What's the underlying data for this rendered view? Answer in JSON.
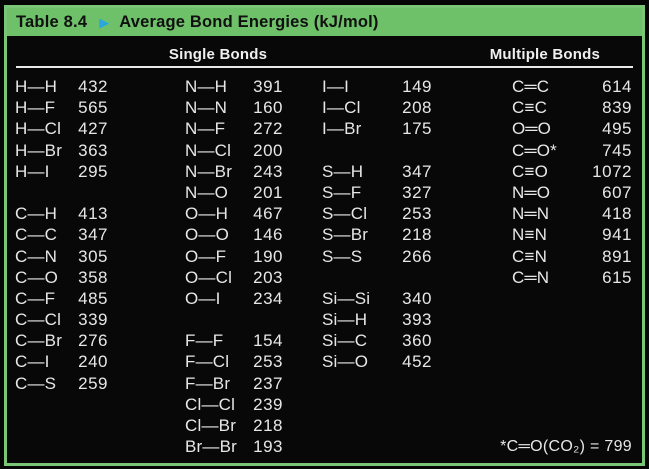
{
  "header": {
    "table_label": "Table 8.4",
    "arrow_glyph": "▶",
    "title": "Average Bond Energies (kJ/mol)"
  },
  "sections": {
    "single": "Single Bonds",
    "multiple": "Multiple Bonds"
  },
  "footnote": "*C═O(CO₂) = 799",
  "colors": {
    "header_green": "#6ec069",
    "frame_green": "#79c776",
    "arrow_cyan": "#29a8df",
    "background": "#080808",
    "text": "#e7e7e7",
    "title_text": "#101010"
  },
  "columns": [
    {
      "name": "single-1",
      "rows": [
        [
          "H—H",
          "432"
        ],
        [
          "H—F",
          "565"
        ],
        [
          "H—Cl",
          "427"
        ],
        [
          "H—Br",
          "363"
        ],
        [
          "H—I",
          "295"
        ],
        null,
        [
          "C—H",
          "413"
        ],
        [
          "C—C",
          "347"
        ],
        [
          "C—N",
          "305"
        ],
        [
          "C—O",
          "358"
        ],
        [
          "C—F",
          "485"
        ],
        [
          "C—Cl",
          "339"
        ],
        [
          "C—Br",
          "276"
        ],
        [
          "C—I",
          "240"
        ],
        [
          "C—S",
          "259"
        ],
        null,
        null,
        null
      ]
    },
    {
      "name": "single-2",
      "rows": [
        [
          "N—H",
          "391"
        ],
        [
          "N—N",
          "160"
        ],
        [
          "N—F",
          "272"
        ],
        [
          "N—Cl",
          "200"
        ],
        [
          "N—Br",
          "243"
        ],
        [
          "N—O",
          "201"
        ],
        [
          "O—H",
          "467"
        ],
        [
          "O—O",
          "146"
        ],
        [
          "O—F",
          "190"
        ],
        [
          "O—Cl",
          "203"
        ],
        [
          "O—I",
          "234"
        ],
        null,
        [
          "F—F",
          "154"
        ],
        [
          "F—Cl",
          "253"
        ],
        [
          "F—Br",
          "237"
        ],
        [
          "Cl—Cl",
          "239"
        ],
        [
          "Cl—Br",
          "218"
        ],
        [
          "Br—Br",
          "193"
        ]
      ]
    },
    {
      "name": "single-3",
      "rows": [
        [
          "I—I",
          "149"
        ],
        [
          "I—Cl",
          "208"
        ],
        [
          "I—Br",
          "175"
        ],
        null,
        [
          "S—H",
          "347"
        ],
        [
          "S—F",
          "327"
        ],
        [
          "S—Cl",
          "253"
        ],
        [
          "S—Br",
          "218"
        ],
        [
          "S—S",
          "266"
        ],
        null,
        [
          "Si—Si",
          "340"
        ],
        [
          "Si—H",
          "393"
        ],
        [
          "Si—C",
          "360"
        ],
        [
          "Si—O",
          "452"
        ],
        null,
        null,
        null,
        null
      ]
    },
    {
      "name": "multiple",
      "rows": [
        [
          "C═C",
          "614"
        ],
        [
          "C≡C",
          "839"
        ],
        [
          "O═O",
          "495"
        ],
        [
          "C═O*",
          "745"
        ],
        [
          "C≡O",
          "1072"
        ],
        [
          "N═O",
          "607"
        ],
        [
          "N═N",
          "418"
        ],
        [
          "N≡N",
          "941"
        ],
        [
          "C≡N",
          "891"
        ],
        [
          "C═N",
          "615"
        ],
        null,
        null,
        null,
        null,
        null,
        null,
        null,
        null
      ]
    }
  ]
}
